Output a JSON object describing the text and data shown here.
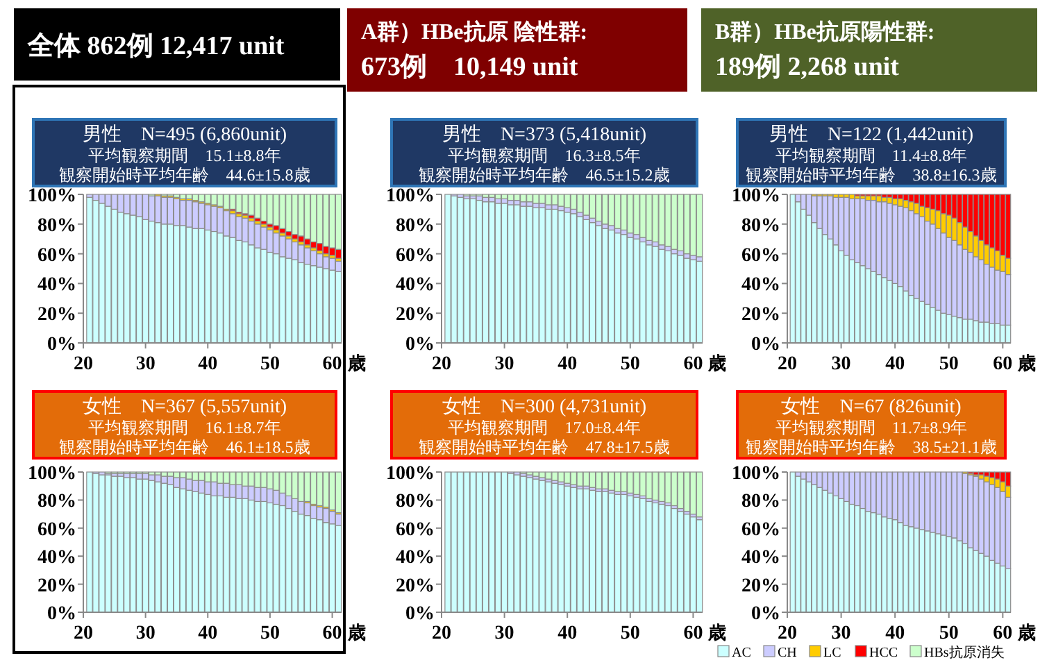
{
  "chart_data": [
    {
      "type": "bar",
      "stacked": true,
      "title": "男性　N=495 (6,860unit)",
      "subtitle": "平均観察期間　15.1±8.8年",
      "annotations": [
        "観察開始時平均年齢　44.6±15.8歳",
        "全体 862例 12,417 unit"
      ],
      "xlabel": "歳",
      "x": [
        21,
        22,
        23,
        24,
        25,
        26,
        27,
        28,
        29,
        30,
        31,
        32,
        33,
        34,
        35,
        36,
        37,
        38,
        39,
        40,
        41,
        42,
        43,
        44,
        45,
        46,
        47,
        48,
        49,
        50,
        51,
        52,
        53,
        54,
        55,
        56,
        57,
        58,
        59,
        60,
        61
      ],
      "xlim": [
        20,
        61.5
      ],
      "xticks": [
        20,
        30,
        40,
        50,
        60
      ],
      "ylim": [
        0,
        100
      ],
      "yticks": [
        {
          "value": 0,
          "label": "0%"
        },
        {
          "value": 20,
          "label": "20%"
        },
        {
          "value": 40,
          "label": "40%"
        },
        {
          "value": 60,
          "label": "60%"
        },
        {
          "value": 80,
          "label": "80%"
        },
        {
          "value": 100,
          "label": "100%"
        }
      ],
      "series": [
        {
          "color": "#ccffff",
          "values": [
            98,
            96,
            94,
            92,
            90,
            88,
            87,
            86,
            85,
            83,
            82,
            81,
            80,
            80,
            79,
            79,
            78,
            77,
            77,
            76,
            75,
            74,
            72,
            71,
            69,
            68,
            66,
            64,
            63,
            61,
            60,
            58,
            57,
            56,
            54,
            53,
            52,
            51,
            50,
            49,
            48
          ]
        },
        {
          "color": "#ccccff",
          "values": [
            2,
            4,
            6,
            8,
            10,
            12,
            13,
            14,
            15,
            17,
            17,
            18,
            18,
            18,
            18,
            17,
            18,
            18,
            17,
            17,
            17,
            17,
            17,
            16,
            16,
            16,
            16,
            16,
            15,
            15,
            14,
            14,
            13,
            12,
            12,
            11,
            10,
            9,
            8,
            8,
            7
          ]
        },
        {
          "color": "#ffcc00",
          "values": [
            0,
            0,
            0,
            0,
            0,
            0,
            0,
            0,
            0,
            0,
            0,
            1,
            1,
            1,
            1,
            1,
            1,
            1,
            1,
            1,
            1,
            1,
            1,
            2,
            2,
            2,
            2,
            2,
            2,
            2,
            2,
            2,
            2,
            2,
            2,
            2,
            2,
            2,
            2,
            2,
            2
          ]
        },
        {
          "color": "#ff0000",
          "values": [
            0,
            0,
            0,
            0,
            0,
            0,
            0,
            0,
            0,
            0,
            0,
            0,
            0,
            0,
            0,
            0,
            0,
            0,
            0,
            0,
            0,
            0,
            0,
            1,
            1,
            1,
            2,
            2,
            2,
            2,
            3,
            3,
            3,
            3,
            4,
            4,
            4,
            5,
            5,
            5,
            6
          ]
        },
        {
          "color": "#ccffcc",
          "values": [
            0,
            0,
            0,
            0,
            0,
            0,
            0,
            0,
            0,
            0,
            1,
            0,
            1,
            1,
            2,
            3,
            3,
            4,
            5,
            6,
            7,
            8,
            10,
            10,
            12,
            13,
            14,
            16,
            18,
            20,
            21,
            23,
            25,
            27,
            28,
            30,
            32,
            33,
            35,
            36,
            37
          ]
        }
      ]
    },
    {
      "type": "bar",
      "stacked": true,
      "title": "男性　N=373 (5,418unit)",
      "subtitle": "平均観察期間　16.3±8.5年",
      "annotations": [
        "観察開始時平均年齢　46.5±15.2歳",
        "A群）HBe抗原 陰性群:",
        "673例　10,149 unit"
      ],
      "xlabel": "歳",
      "x": [
        21,
        22,
        23,
        24,
        25,
        26,
        27,
        28,
        29,
        30,
        31,
        32,
        33,
        34,
        35,
        36,
        37,
        38,
        39,
        40,
        41,
        42,
        43,
        44,
        45,
        46,
        47,
        48,
        49,
        50,
        51,
        52,
        53,
        54,
        55,
        56,
        57,
        58,
        59,
        60,
        61
      ],
      "xlim": [
        20,
        61.5
      ],
      "xticks": [
        20,
        30,
        40,
        50,
        60
      ],
      "ylim": [
        0,
        100
      ],
      "yticks": [
        {
          "value": 0,
          "label": "0%"
        },
        {
          "value": 20,
          "label": "20%"
        },
        {
          "value": 40,
          "label": "40%"
        },
        {
          "value": 60,
          "label": "60%"
        },
        {
          "value": 80,
          "label": "80%"
        },
        {
          "value": 100,
          "label": "100%"
        }
      ],
      "series": [
        {
          "color": "#ccffff",
          "values": [
            100,
            99,
            98,
            97,
            97,
            96,
            95,
            95,
            94,
            94,
            93,
            93,
            92,
            92,
            91,
            91,
            90,
            90,
            89,
            88,
            87,
            85,
            83,
            81,
            79,
            77,
            76,
            74,
            73,
            71,
            70,
            68,
            66,
            65,
            63,
            62,
            60,
            59,
            57,
            56,
            55
          ]
        },
        {
          "color": "#ccccff",
          "values": [
            0,
            1,
            2,
            2,
            2,
            3,
            3,
            3,
            3,
            3,
            3,
            3,
            3,
            3,
            3,
            3,
            3,
            3,
            3,
            3,
            3,
            3,
            3,
            3,
            3,
            3,
            3,
            3,
            3,
            3,
            3,
            3,
            3,
            3,
            3,
            3,
            3,
            3,
            3,
            3,
            3
          ]
        },
        {
          "color": "#ccffcc",
          "values": [
            0,
            0,
            0,
            1,
            1,
            1,
            2,
            2,
            3,
            3,
            4,
            4,
            5,
            5,
            6,
            6,
            7,
            7,
            8,
            9,
            10,
            12,
            14,
            16,
            18,
            20,
            21,
            23,
            24,
            26,
            27,
            29,
            31,
            32,
            34,
            35,
            37,
            38,
            40,
            41,
            42
          ]
        }
      ]
    },
    {
      "type": "bar",
      "stacked": true,
      "title": "男性　N=122 (1,442unit)",
      "subtitle": "平均観察期間　11.4±8.8年",
      "annotations": [
        "観察開始時平均年齢　38.8±16.3歳",
        "B群）HBe抗原陽性群:",
        "189例 2,268 unit"
      ],
      "xlabel": "歳",
      "x": [
        21,
        22,
        23,
        24,
        25,
        26,
        27,
        28,
        29,
        30,
        31,
        32,
        33,
        34,
        35,
        36,
        37,
        38,
        39,
        40,
        41,
        42,
        43,
        44,
        45,
        46,
        47,
        48,
        49,
        50,
        51,
        52,
        53,
        54,
        55,
        56,
        57,
        58,
        59,
        60,
        61
      ],
      "xlim": [
        20,
        61.5
      ],
      "xticks": [
        20,
        30,
        40,
        50,
        60
      ],
      "ylim": [
        0,
        100
      ],
      "yticks": [
        {
          "value": 0,
          "label": "0%"
        },
        {
          "value": 20,
          "label": "20%"
        },
        {
          "value": 40,
          "label": "40%"
        },
        {
          "value": 60,
          "label": "60%"
        },
        {
          "value": 80,
          "label": "80%"
        },
        {
          "value": 100,
          "label": "100%"
        }
      ],
      "series": [
        {
          "color": "#ccffff",
          "values": [
            100,
            95,
            90,
            86,
            81,
            77,
            73,
            70,
            66,
            62,
            59,
            56,
            54,
            52,
            50,
            48,
            46,
            44,
            42,
            40,
            38,
            35,
            32,
            30,
            28,
            26,
            24,
            22,
            20,
            19,
            18,
            17,
            16,
            16,
            15,
            14,
            14,
            13,
            13,
            12,
            12
          ]
        },
        {
          "color": "#ccccff",
          "values": [
            0,
            5,
            10,
            14,
            18,
            22,
            26,
            29,
            32,
            36,
            39,
            41,
            43,
            45,
            46,
            48,
            49,
            51,
            52,
            53,
            54,
            56,
            57,
            57,
            57,
            56,
            56,
            55,
            54,
            52,
            51,
            49,
            47,
            45,
            43,
            42,
            39,
            38,
            36,
            36,
            34
          ]
        },
        {
          "color": "#ffcc00",
          "values": [
            0,
            0,
            0,
            0,
            1,
            1,
            1,
            1,
            2,
            2,
            2,
            3,
            2,
            2,
            3,
            3,
            4,
            3,
            4,
            4,
            5,
            5,
            6,
            7,
            7,
            9,
            10,
            12,
            13,
            15,
            15,
            15,
            15,
            14,
            14,
            13,
            13,
            13,
            13,
            11,
            11
          ]
        },
        {
          "color": "#ff0000",
          "values": [
            0,
            0,
            0,
            0,
            0,
            0,
            0,
            0,
            0,
            0,
            0,
            0,
            1,
            1,
            1,
            1,
            1,
            2,
            2,
            3,
            3,
            4,
            5,
            6,
            8,
            9,
            10,
            11,
            13,
            14,
            16,
            19,
            22,
            25,
            28,
            31,
            34,
            36,
            38,
            41,
            43
          ]
        }
      ]
    },
    {
      "type": "bar",
      "stacked": true,
      "title": "女性　N=367 (5,557unit)",
      "subtitle": "平均観察期間　16.1±8.7年",
      "annotations": [
        "観察開始時平均年齢　46.1±18.5歳"
      ],
      "xlabel": "歳",
      "x": [
        21,
        22,
        23,
        24,
        25,
        26,
        27,
        28,
        29,
        30,
        31,
        32,
        33,
        34,
        35,
        36,
        37,
        38,
        39,
        40,
        41,
        42,
        43,
        44,
        45,
        46,
        47,
        48,
        49,
        50,
        51,
        52,
        53,
        54,
        55,
        56,
        57,
        58,
        59,
        60,
        61
      ],
      "xlim": [
        20,
        61.5
      ],
      "xticks": [
        20,
        30,
        40,
        50,
        60
      ],
      "ylim": [
        0,
        100
      ],
      "yticks": [
        {
          "value": 0,
          "label": "0%"
        },
        {
          "value": 20,
          "label": "20%"
        },
        {
          "value": 40,
          "label": "40%"
        },
        {
          "value": 60,
          "label": "60%"
        },
        {
          "value": 80,
          "label": "80%"
        },
        {
          "value": 100,
          "label": "100%"
        }
      ],
      "series": [
        {
          "color": "#ccffff",
          "values": [
            100,
            99,
            98,
            98,
            97,
            97,
            96,
            96,
            95,
            95,
            94,
            93,
            92,
            91,
            89,
            88,
            87,
            86,
            85,
            84,
            83,
            83,
            82,
            82,
            81,
            81,
            80,
            79,
            79,
            78,
            77,
            76,
            74,
            72,
            70,
            69,
            67,
            66,
            64,
            63,
            62
          ]
        },
        {
          "color": "#ccccff",
          "values": [
            0,
            1,
            2,
            1,
            2,
            2,
            3,
            3,
            4,
            4,
            4,
            5,
            5,
            6,
            7,
            8,
            8,
            8,
            9,
            9,
            10,
            9,
            10,
            9,
            10,
            9,
            10,
            10,
            10,
            10,
            10,
            9,
            9,
            9,
            9,
            9,
            9,
            9,
            10,
            9,
            8
          ]
        },
        {
          "color": "#ffcc00",
          "values": [
            0,
            0,
            0,
            0,
            0,
            0,
            0,
            0,
            0,
            0,
            0,
            0,
            0,
            0,
            0,
            0,
            0,
            0,
            0,
            0,
            0,
            0,
            0,
            0,
            0,
            0,
            0,
            0,
            0,
            0,
            0,
            0,
            0,
            0,
            0,
            1,
            1,
            1,
            1,
            1,
            1
          ]
        },
        {
          "color": "#ccffcc",
          "values": [
            0,
            0,
            0,
            1,
            1,
            1,
            1,
            1,
            1,
            1,
            2,
            2,
            3,
            3,
            4,
            4,
            5,
            6,
            6,
            7,
            7,
            8,
            8,
            9,
            9,
            10,
            10,
            11,
            11,
            12,
            13,
            15,
            17,
            19,
            21,
            21,
            23,
            24,
            25,
            27,
            29
          ]
        }
      ]
    },
    {
      "type": "bar",
      "stacked": true,
      "title": "女性　N=300 (4,731unit)",
      "subtitle": "平均観察期間　17.0±8.4年",
      "annotations": [
        "観察開始時平均年齢　47.8±17.5歳"
      ],
      "xlabel": "歳",
      "x": [
        21,
        22,
        23,
        24,
        25,
        26,
        27,
        28,
        29,
        30,
        31,
        32,
        33,
        34,
        35,
        36,
        37,
        38,
        39,
        40,
        41,
        42,
        43,
        44,
        45,
        46,
        47,
        48,
        49,
        50,
        51,
        52,
        53,
        54,
        55,
        56,
        57,
        58,
        59,
        60,
        61
      ],
      "xlim": [
        20,
        61.5
      ],
      "xticks": [
        20,
        30,
        40,
        50,
        60
      ],
      "ylim": [
        0,
        100
      ],
      "yticks": [
        {
          "value": 0,
          "label": "0%"
        },
        {
          "value": 20,
          "label": "20%"
        },
        {
          "value": 40,
          "label": "40%"
        },
        {
          "value": 60,
          "label": "60%"
        },
        {
          "value": 80,
          "label": "80%"
        },
        {
          "value": 100,
          "label": "100%"
        }
      ],
      "series": [
        {
          "color": "#ccffff",
          "values": [
            100,
            100,
            100,
            100,
            100,
            100,
            100,
            100,
            100,
            100,
            99,
            98,
            97,
            96,
            95,
            94,
            93,
            92,
            91,
            90,
            89,
            88,
            88,
            87,
            86,
            86,
            85,
            84,
            84,
            83,
            82,
            81,
            79,
            78,
            77,
            76,
            74,
            72,
            70,
            68,
            66
          ]
        },
        {
          "color": "#ccccff",
          "values": [
            0,
            0,
            0,
            0,
            0,
            0,
            0,
            0,
            0,
            0,
            1,
            2,
            2,
            2,
            2,
            2,
            2,
            2,
            2,
            2,
            2,
            2,
            2,
            2,
            2,
            2,
            2,
            2,
            2,
            2,
            2,
            2,
            2,
            2,
            2,
            2,
            2,
            2,
            2,
            2,
            2
          ]
        },
        {
          "color": "#ccffcc",
          "values": [
            0,
            0,
            0,
            0,
            0,
            0,
            0,
            0,
            0,
            0,
            0,
            0,
            1,
            2,
            3,
            4,
            5,
            6,
            7,
            8,
            9,
            10,
            10,
            11,
            12,
            12,
            13,
            14,
            14,
            15,
            16,
            17,
            19,
            20,
            21,
            22,
            24,
            26,
            28,
            30,
            32
          ]
        }
      ]
    },
    {
      "type": "bar",
      "stacked": true,
      "title": "女性　N=67 (826unit)",
      "subtitle": "平均観察期間　11.7±8.9年",
      "annotations": [
        "観察開始時平均年齢　38.5±21.1歳"
      ],
      "xlabel": "歳",
      "legend": "bottom",
      "x": [
        21,
        22,
        23,
        24,
        25,
        26,
        27,
        28,
        29,
        30,
        31,
        32,
        33,
        34,
        35,
        36,
        37,
        38,
        39,
        40,
        41,
        42,
        43,
        44,
        45,
        46,
        47,
        48,
        49,
        50,
        51,
        52,
        53,
        54,
        55,
        56,
        57,
        58,
        59,
        60,
        61
      ],
      "xlim": [
        20,
        61.5
      ],
      "xticks": [
        20,
        30,
        40,
        50,
        60
      ],
      "ylim": [
        0,
        100
      ],
      "yticks": [
        {
          "value": 0,
          "label": "0%"
        },
        {
          "value": 20,
          "label": "20%"
        },
        {
          "value": 40,
          "label": "40%"
        },
        {
          "value": 60,
          "label": "60%"
        },
        {
          "value": 80,
          "label": "80%"
        },
        {
          "value": 100,
          "label": "100%"
        }
      ],
      "series": [
        {
          "name": "AC",
          "color": "#ccffff",
          "values": [
            100,
            97,
            95,
            93,
            91,
            89,
            87,
            85,
            83,
            81,
            79,
            77,
            76,
            74,
            72,
            71,
            70,
            68,
            67,
            66,
            64,
            62,
            61,
            60,
            59,
            58,
            57,
            56,
            55,
            54,
            53,
            51,
            49,
            46,
            44,
            42,
            40,
            37,
            35,
            33,
            31
          ]
        },
        {
          "name": "CH",
          "color": "#ccccff",
          "values": [
            0,
            3,
            5,
            7,
            9,
            11,
            13,
            15,
            17,
            19,
            21,
            23,
            24,
            26,
            28,
            29,
            30,
            32,
            33,
            34,
            36,
            38,
            39,
            40,
            41,
            42,
            43,
            44,
            45,
            46,
            47,
            49,
            50,
            52,
            53,
            53,
            53,
            54,
            54,
            53,
            51
          ]
        },
        {
          "name": "LC",
          "color": "#ffcc00",
          "values": [
            0,
            0,
            0,
            0,
            0,
            0,
            0,
            0,
            0,
            0,
            0,
            0,
            0,
            0,
            0,
            0,
            0,
            0,
            0,
            0,
            0,
            0,
            0,
            0,
            0,
            0,
            0,
            0,
            0,
            0,
            0,
            0,
            1,
            1,
            1,
            3,
            4,
            5,
            6,
            7,
            8
          ]
        },
        {
          "name": "HCC",
          "color": "#ff0000",
          "values": [
            0,
            0,
            0,
            0,
            0,
            0,
            0,
            0,
            0,
            0,
            0,
            0,
            0,
            0,
            0,
            0,
            0,
            0,
            0,
            0,
            0,
            0,
            0,
            0,
            0,
            0,
            0,
            0,
            0,
            0,
            0,
            0,
            0,
            1,
            2,
            2,
            3,
            4,
            5,
            7,
            10
          ]
        },
        {
          "name": "HBs抗原消失",
          "color": "#ccffcc",
          "values": [
            0,
            0,
            0,
            0,
            0,
            0,
            0,
            0,
            0,
            0,
            0,
            0,
            0,
            0,
            0,
            0,
            0,
            0,
            0,
            0,
            0,
            0,
            0,
            0,
            0,
            0,
            0,
            0,
            0,
            0,
            0,
            0,
            0,
            0,
            0,
            0,
            0,
            0,
            0,
            0,
            0
          ]
        }
      ]
    }
  ]
}
